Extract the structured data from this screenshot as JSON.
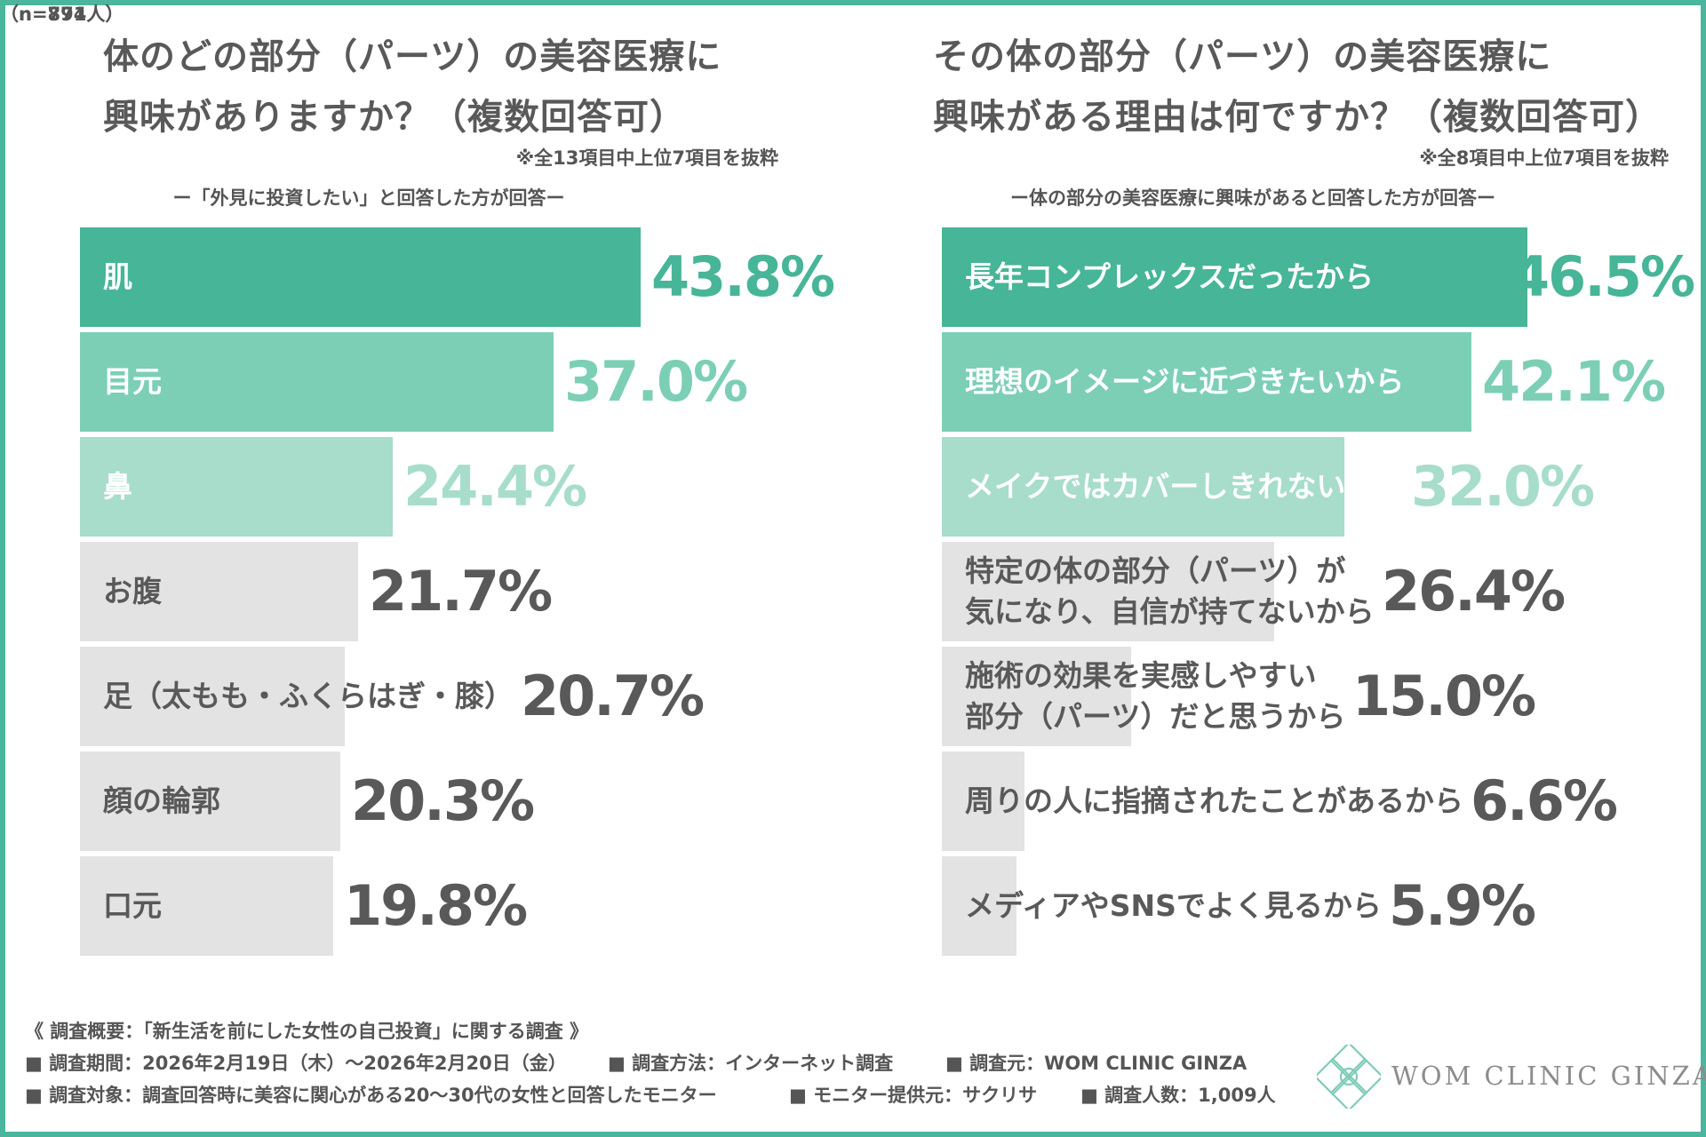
{
  "colors": {
    "border": "#4cb69c",
    "highlight": [
      "#47b597",
      "#7ccfb5",
      "#a7ddca"
    ],
    "gray_bar": "#e3e3e3",
    "text_dark": "#595959",
    "text_white": "#ffffff"
  },
  "chart_data": [
    {
      "type": "bar",
      "orientation": "horizontal",
      "title": "体のどの部分（パーツ）の美容医療に興味がありますか？（複数回答可）",
      "title_lines": [
        "体のどの部分（パーツ）の美容医療に",
        "興味がありますか？（複数回答可）"
      ],
      "note": "※全13項目中上位7項目を抜粋",
      "subtitle": "ー「外見に投資したい」と回答した方が回答ー",
      "categories": [
        "肌",
        "目元",
        "鼻",
        "お腹",
        "足（太もも・ふくらはぎ・膝）",
        "顔の輪郭",
        "口元"
      ],
      "label_lines": [
        [
          "肌"
        ],
        [
          "目元"
        ],
        [
          "鼻"
        ],
        [
          "お腹"
        ],
        [
          "足（太もも・ふくらはぎ・膝）"
        ],
        [
          "顔の輪郭"
        ],
        [
          "口元"
        ]
      ],
      "values": [
        43.8,
        37.0,
        24.4,
        21.7,
        20.7,
        20.3,
        19.8
      ],
      "value_labels": [
        "43.8%",
        "37.0%",
        "24.4%",
        "21.7%",
        "20.7%",
        "20.3%",
        "19.8%"
      ],
      "unit": "%",
      "xlim": [
        0,
        68
      ],
      "n_label": "（n=891人）"
    },
    {
      "type": "bar",
      "orientation": "horizontal",
      "title": "その体の部分（パーツ）の美容医療に興味がある理由は何ですか？（複数回答可）",
      "title_lines": [
        "その体の部分（パーツ）の美容医療に",
        "興味がある理由は何ですか？（複数回答可）"
      ],
      "note": "※全8項目中上位7項目を抜粋",
      "subtitle": "ー体の部分の美容医療に興味があると回答した方が回答ー",
      "categories": [
        "長年コンプレックスだったから",
        "理想のイメージに近づきたいから",
        "メイクではカバーしきれないから",
        "特定の体の部分（パーツ）が気になり、自信が持てないから",
        "施術の効果を実感しやすい部分（パーツ）だと思うから",
        "周りの人に指摘されたことがあるから",
        "メディアやSNSでよく見るから"
      ],
      "label_lines": [
        [
          "長年コンプレックスだったから"
        ],
        [
          "理想のイメージに近づきたいから"
        ],
        [
          "メイクではカバーしきれないから"
        ],
        [
          "特定の体の部分（パーツ）が",
          "気になり、自信が持てないから"
        ],
        [
          "施術の効果を実感しやすい",
          "部分（パーツ）だと思うから"
        ],
        [
          "周りの人に指摘されたことがあるから"
        ],
        [
          "メディアやSNSでよく見るから"
        ]
      ],
      "values": [
        46.5,
        42.1,
        32.0,
        26.4,
        15.0,
        6.6,
        5.9
      ],
      "value_labels": [
        "46.5%",
        "42.1%",
        "32.0%",
        "26.4%",
        "15.0%",
        "6.6%",
        "5.9%"
      ],
      "unit": "%",
      "xlim": [
        0,
        72
      ],
      "n_label": "（n=774人）"
    }
  ],
  "footer": {
    "heading": "《 調査概要：「新生活を前にした女性の自己投資」に関する調査 》",
    "line1": [
      "■ 調査期間：2026年2月19日（木）～2026年2月20日（金）",
      "■ 調査方法：インターネット調査",
      "■ 調査元：WOM CLINIC GINZA"
    ],
    "line2": [
      "■ 調査対象：調査回答時に美容に関心がある20～30代の女性と回答したモニター",
      "■ モニター提供元：サクリサ",
      "■ 調査人数：1,009人"
    ]
  },
  "logo": {
    "text": "WOM CLINIC GINZA",
    "icon": "flower-logo-icon"
  }
}
